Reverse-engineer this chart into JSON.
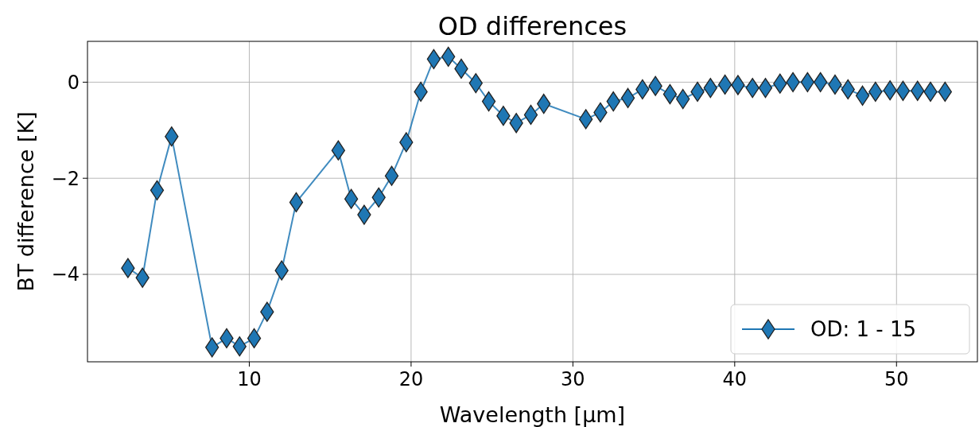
{
  "chart_data": {
    "type": "line",
    "title": "OD differences",
    "xlabel": "Wavelength [μm]",
    "ylabel": "BT difference [K]",
    "xlim": [
      0,
      55
    ],
    "ylim": [
      -5.82,
      0.85
    ],
    "xticks": [
      10,
      20,
      30,
      40,
      50
    ],
    "yticks": [
      -4,
      -2,
      0
    ],
    "grid": true,
    "legend": "bottom right",
    "marker": "diamond",
    "line_style": "solid",
    "series": [
      {
        "name": "OD: 1 - 15",
        "color": "#1f77b4",
        "x": [
          2.5,
          3.4,
          4.3,
          5.2,
          7.7,
          8.6,
          9.4,
          10.3,
          11.1,
          12.0,
          12.9,
          15.5,
          16.3,
          17.1,
          18.0,
          18.8,
          19.7,
          20.6,
          21.4,
          22.3,
          23.1,
          24.0,
          24.8,
          25.7,
          26.5,
          27.4,
          28.2,
          30.8,
          31.7,
          32.5,
          33.4,
          34.3,
          35.1,
          36.0,
          36.8,
          37.7,
          38.5,
          39.4,
          40.2,
          41.1,
          41.9,
          42.8,
          43.6,
          44.5,
          45.3,
          46.2,
          47.0,
          47.9,
          48.7,
          49.6,
          50.4,
          51.3,
          52.1,
          53.0
        ],
        "values": [
          -3.87,
          -4.07,
          -2.25,
          -1.13,
          -5.52,
          -5.33,
          -5.5,
          -5.33,
          -4.78,
          -3.92,
          -2.5,
          -1.42,
          -2.43,
          -2.76,
          -2.4,
          -1.95,
          -1.25,
          -0.2,
          0.48,
          0.53,
          0.28,
          -0.02,
          -0.4,
          -0.7,
          -0.85,
          -0.68,
          -0.45,
          -0.77,
          -0.63,
          -0.4,
          -0.33,
          -0.15,
          -0.08,
          -0.25,
          -0.35,
          -0.2,
          -0.12,
          -0.05,
          -0.06,
          -0.12,
          -0.12,
          -0.03,
          0,
          0,
          0,
          -0.05,
          -0.15,
          -0.28,
          -0.2,
          -0.17,
          -0.18,
          -0.18,
          -0.2,
          -0.2
        ]
      }
    ]
  }
}
